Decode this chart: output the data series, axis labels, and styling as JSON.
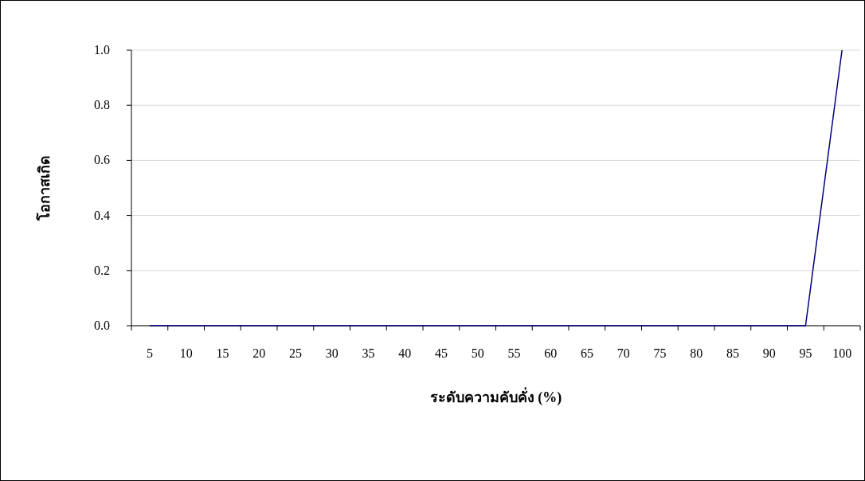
{
  "chart_data": {
    "type": "line",
    "xlabel": "ระดับความคับคั่ง (%)",
    "ylabel": "โอกาสเกิด",
    "categories": [
      "5",
      "10",
      "15",
      "20",
      "25",
      "30",
      "35",
      "40",
      "45",
      "50",
      "55",
      "60",
      "65",
      "70",
      "75",
      "80",
      "85",
      "90",
      "95",
      "100"
    ],
    "series": [
      {
        "color": "#000080",
        "values": [
          0,
          0,
          0,
          0,
          0,
          0,
          0,
          0,
          0,
          0,
          0,
          0,
          0,
          0,
          0,
          0,
          0,
          0,
          0,
          1
        ]
      }
    ],
    "ylim": [
      0,
      1
    ],
    "yticks": [
      {
        "value": 0,
        "label": "0.0"
      },
      {
        "value": 0.2,
        "label": "0.2"
      },
      {
        "value": 0.4,
        "label": "0.4"
      },
      {
        "value": 0.6,
        "label": "0.6"
      },
      {
        "value": 0.8,
        "label": "0.8"
      },
      {
        "value": 1,
        "label": "1.0"
      }
    ],
    "grid": "y",
    "marker": "none",
    "line_style": "solid"
  }
}
